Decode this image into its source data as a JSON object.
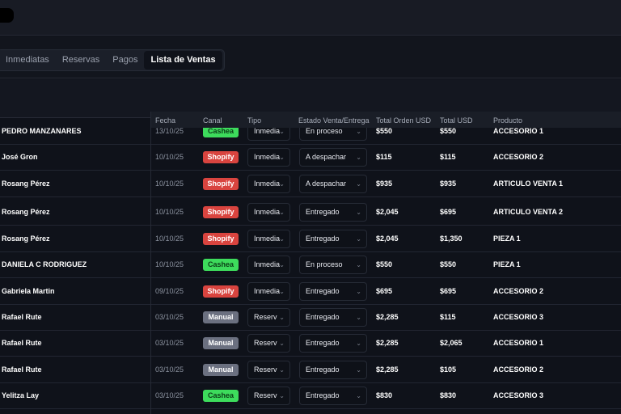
{
  "tabs": [
    {
      "label": "Inmediatas"
    },
    {
      "label": "Reservas"
    },
    {
      "label": "Pagos"
    },
    {
      "label": "Lista de Ventas",
      "active": true
    }
  ],
  "table": {
    "columns": [
      "Fecha",
      "Canal",
      "Tipo",
      "Estado Venta/Entrega",
      "Total Orden USD",
      "Total USD",
      "Producto"
    ],
    "channel_colors": {
      "Cashea": "#3ddc5c",
      "Shopify": "#d9443f",
      "Manual": "#6b7080"
    },
    "rows": [
      {
        "cliente": "PEDRO MANZANARES",
        "fecha": "13/10/25",
        "canal": "Cashea",
        "tipo": "Inmedia",
        "estado": "En proceso",
        "total_orden": "$550",
        "total_usd": "$550",
        "producto": "ACCESORIO 1"
      },
      {
        "cliente": "José Gron",
        "fecha": "10/10/25",
        "canal": "Shopify",
        "tipo": "Inmedia",
        "estado": "A despachar",
        "total_orden": "$115",
        "total_usd": "$115",
        "producto": "ACCESORIO 2"
      },
      {
        "cliente": "Rosang Pérez",
        "fecha": "10/10/25",
        "canal": "Shopify",
        "tipo": "Inmedia",
        "estado": "A despachar",
        "total_orden": "$935",
        "total_usd": "$935",
        "producto": "ARTICULO VENTA 1"
      },
      {
        "cliente": "Rosang Pérez",
        "fecha": "10/10/25",
        "canal": "Shopify",
        "tipo": "Inmedia",
        "estado": "Entregado",
        "total_orden": "$2,045",
        "total_usd": "$695",
        "producto": "ARTICULO VENTA 2"
      },
      {
        "cliente": "Rosang Pérez",
        "fecha": "10/10/25",
        "canal": "Shopify",
        "tipo": "Inmedia",
        "estado": "Entregado",
        "total_orden": "$2,045",
        "total_usd": "$1,350",
        "producto": "PIEZA 1"
      },
      {
        "cliente": "DANIELA C RODRIGUEZ",
        "fecha": "10/10/25",
        "canal": "Cashea",
        "tipo": "Inmedia",
        "estado": "En proceso",
        "total_orden": "$550",
        "total_usd": "$550",
        "producto": "PIEZA 1"
      },
      {
        "cliente": "Gabriela Martin",
        "fecha": "09/10/25",
        "canal": "Shopify",
        "tipo": "Inmedia",
        "estado": "Entregado",
        "total_orden": "$695",
        "total_usd": "$695",
        "producto": "ACCESORIO 2"
      },
      {
        "cliente": "Rafael Rute",
        "fecha": "03/10/25",
        "canal": "Manual",
        "tipo": "Reserv",
        "estado": "Entregado",
        "total_orden": "$2,285",
        "total_usd": "$115",
        "producto": "ACCESORIO 3"
      },
      {
        "cliente": "Rafael Rute",
        "fecha": "03/10/25",
        "canal": "Manual",
        "tipo": "Reserv",
        "estado": "Entregado",
        "total_orden": "$2,285",
        "total_usd": "$2,065",
        "producto": "ACCESORIO 1"
      },
      {
        "cliente": "Rafael Rute",
        "fecha": "03/10/25",
        "canal": "Manual",
        "tipo": "Reserv",
        "estado": "Entregado",
        "total_orden": "$2,285",
        "total_usd": "$105",
        "producto": "ACCESORIO 2"
      },
      {
        "cliente": "Yelitza Lay",
        "fecha": "03/10/25",
        "canal": "Cashea",
        "tipo": "Reserv",
        "estado": "Entregado",
        "total_orden": "$830",
        "total_usd": "$830",
        "producto": "ACCESORIO 3"
      }
    ]
  }
}
